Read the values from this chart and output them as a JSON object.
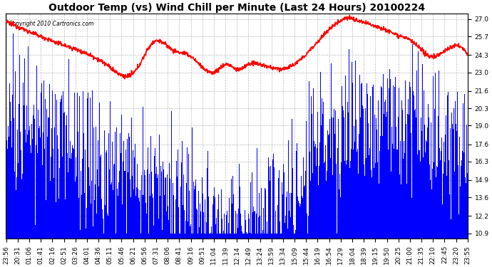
{
  "title": "Outdoor Temp (vs) Wind Chill per Minute (Last 24 Hours) 20100224",
  "copyright": "Copyright 2010 Cartronics.com",
  "yticks": [
    10.9,
    12.2,
    13.6,
    14.9,
    16.3,
    17.6,
    19.0,
    20.3,
    21.6,
    23.0,
    24.3,
    25.7,
    27.0
  ],
  "ylim": [
    10.5,
    27.4
  ],
  "xtick_labels": [
    "23:56",
    "20:31",
    "01:06",
    "01:41",
    "02:16",
    "02:51",
    "03:26",
    "04:01",
    "04:36",
    "05:11",
    "05:46",
    "06:21",
    "06:56",
    "07:31",
    "08:06",
    "08:41",
    "09:16",
    "09:51",
    "11:04",
    "11:39",
    "12:14",
    "12:49",
    "13:24",
    "13:59",
    "13:34",
    "15:09",
    "15:44",
    "16:19",
    "16:54",
    "17:29",
    "18:04",
    "18:39",
    "19:15",
    "19:50",
    "20:25",
    "21:00",
    "21:35",
    "22:10",
    "22:45",
    "23:20",
    "23:55"
  ],
  "background_color": "#ffffff",
  "plot_bg_color": "#ffffff",
  "grid_color": "#bbbbbb",
  "blue_color": "#0000ff",
  "red_color": "#ff0000",
  "title_fontsize": 10,
  "tick_fontsize": 6.5,
  "n_points": 1440,
  "red_keypoints_t": [
    0.0,
    0.04,
    0.12,
    0.22,
    0.28,
    0.32,
    0.36,
    0.4,
    0.45,
    0.48,
    0.5,
    0.52,
    0.55,
    0.58,
    0.62,
    0.68,
    0.72,
    0.74,
    0.76,
    0.8,
    0.85,
    0.88,
    0.92,
    0.95,
    1.0
  ],
  "red_keypoints_v": [
    26.8,
    26.2,
    25.1,
    23.5,
    23.1,
    25.3,
    24.7,
    24.2,
    23.0,
    23.6,
    23.2,
    23.5,
    23.6,
    23.3,
    23.5,
    25.5,
    26.8,
    27.1,
    26.9,
    26.5,
    25.8,
    25.3,
    24.2,
    24.6,
    24.3
  ],
  "blue_envelope_t": [
    0.0,
    0.08,
    0.18,
    0.3,
    0.42,
    0.52,
    0.6,
    0.68,
    0.78,
    0.88,
    1.0
  ],
  "blue_envelope_v": [
    20.5,
    18.5,
    16.5,
    14.5,
    13.0,
    11.5,
    12.5,
    16.5,
    19.5,
    19.0,
    17.5
  ],
  "blue_noise_scale": 2.8,
  "blue_seed": 12345
}
